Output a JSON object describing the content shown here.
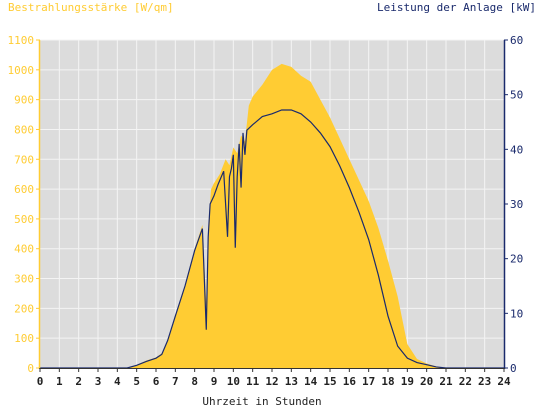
{
  "chart_data": {
    "type": "area",
    "left_axis_label": "Bestrahlungsstärke [W/qm]",
    "right_axis_label": "Leistung der Anlage [kW]",
    "xlabel": "Uhrzeit in Stunden",
    "xlim": [
      0,
      24
    ],
    "x_ticks": [
      "0",
      "1",
      "2",
      "3",
      "4",
      "5",
      "6",
      "7",
      "8",
      "9",
      "10",
      "11",
      "12",
      "13",
      "14",
      "15",
      "16",
      "17",
      "18",
      "19",
      "20",
      "21",
      "22",
      "23",
      "24"
    ],
    "y_left": {
      "lim": [
        0,
        1100
      ],
      "ticks": [
        "0",
        "100",
        "200",
        "300",
        "400",
        "500",
        "600",
        "700",
        "800",
        "900",
        "1000",
        "1100"
      ]
    },
    "y_right": {
      "lim": [
        0,
        60
      ],
      "ticks": [
        "0",
        "10",
        "20",
        "30",
        "40",
        "50",
        "60"
      ]
    },
    "grid": true,
    "colors": {
      "irradiance": "#ffcc33",
      "power": "#1a2a6c",
      "left_axis": "#ffcc33",
      "right_axis": "#1a2a6c",
      "plot_bg": "#dcdcdc"
    },
    "series": [
      {
        "axis": "left",
        "x": [
          0,
          4.5,
          5.0,
          5.5,
          6.0,
          6.3,
          6.6,
          7.0,
          7.5,
          8.0,
          8.4,
          8.6,
          8.75,
          8.85,
          9.0,
          9.3,
          9.6,
          9.8,
          10.0,
          10.2,
          10.4,
          10.6,
          10.8,
          11.0,
          11.5,
          12.0,
          12.5,
          13.0,
          13.5,
          14.0,
          14.5,
          15.0,
          15.5,
          16.0,
          16.5,
          17.0,
          17.5,
          18.0,
          18.5,
          19.0,
          19.5,
          20.0,
          20.5,
          21.0,
          24
        ],
        "values": [
          0,
          0,
          10,
          25,
          35,
          50,
          90,
          180,
          270,
          400,
          480,
          220,
          520,
          600,
          620,
          650,
          700,
          680,
          740,
          720,
          780,
          760,
          880,
          910,
          950,
          1000,
          1020,
          1010,
          980,
          960,
          900,
          840,
          770,
          700,
          630,
          560,
          470,
          360,
          240,
          80,
          30,
          15,
          5,
          0,
          0
        ]
      },
      {
        "axis": "right",
        "x": [
          0,
          4.5,
          5.0,
          5.5,
          6.0,
          6.3,
          6.6,
          7.0,
          7.5,
          8.0,
          8.4,
          8.6,
          8.7,
          8.8,
          9.0,
          9.2,
          9.5,
          9.7,
          9.8,
          9.9,
          10.0,
          10.1,
          10.2,
          10.3,
          10.4,
          10.5,
          10.6,
          10.7,
          11.0,
          11.5,
          12.0,
          12.5,
          13.0,
          13.5,
          14.0,
          14.5,
          15.0,
          15.5,
          16.0,
          16.5,
          17.0,
          17.5,
          18.0,
          18.5,
          19.0,
          19.5,
          20.0,
          20.5,
          21.0,
          24
        ],
        "values": [
          0,
          0,
          0.5,
          1.2,
          1.8,
          2.5,
          5,
          9.5,
          15,
          21.5,
          25.5,
          7,
          24,
          30,
          31.5,
          33.5,
          36,
          24,
          35,
          36.5,
          39,
          22,
          35,
          41,
          33,
          43,
          39,
          43.5,
          44.5,
          46,
          46.5,
          47.2,
          47.2,
          46.5,
          45,
          43,
          40.5,
          37,
          33,
          28.5,
          23.5,
          17,
          9.5,
          4,
          1.8,
          1,
          0.6,
          0.2,
          0,
          0
        ]
      }
    ]
  }
}
